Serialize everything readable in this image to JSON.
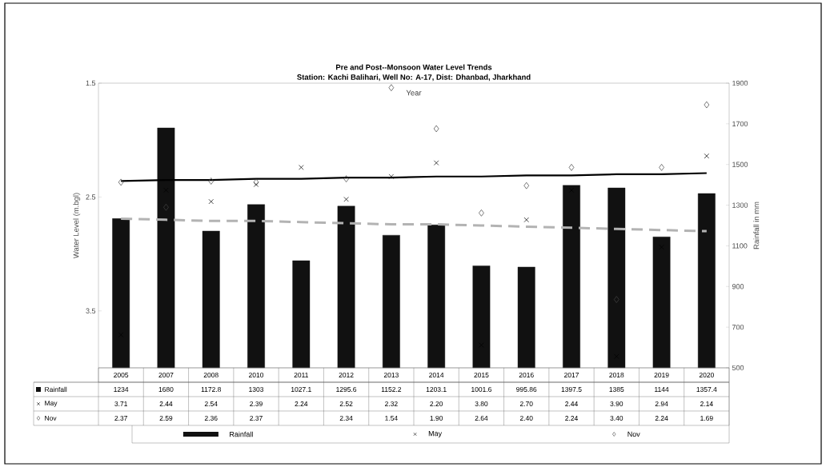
{
  "chart_data": {
    "type": "bar",
    "title": "Pre and Post--Monsoon Water Level Trends",
    "subtitle": "Station: Kachi Balihari, Well No: A-17, Dist: Dhanbad, Jharkhand",
    "xlabel": "Year",
    "ylabel": "Water Level (m.bgl)",
    "y2label": "Rainfall in mm",
    "categories": [
      "2005",
      "2007",
      "2008",
      "2010",
      "2011",
      "2012",
      "2013",
      "2014",
      "2015",
      "2016",
      "2017",
      "2018",
      "2019",
      "2020"
    ],
    "ylim": [
      4,
      1.5
    ],
    "yticks": [
      1.5,
      2.5,
      3.5
    ],
    "y2lim": [
      500,
      1900
    ],
    "y2ticks": [
      500,
      700,
      900,
      1100,
      1300,
      1500,
      1700,
      1900
    ],
    "legend": "bottom",
    "series": [
      {
        "name": "Rainfall",
        "axis": "y2",
        "color": "#111111",
        "values": [
          1234,
          1680,
          1172.8,
          1303,
          1027.1,
          1295.6,
          1152.2,
          1203.1,
          1001.6,
          995.86,
          1397.5,
          1385,
          1144,
          1357.4
        ],
        "value_labels": [
          "1234",
          "1680",
          "1172.8",
          "1303",
          "1027.1",
          "1295.6",
          "1152.2",
          "1203.1",
          "1001.6",
          "995.86",
          "1397.5",
          "1385",
          "1144",
          "1357.4"
        ]
      },
      {
        "name": "May",
        "type": "scatter",
        "marker": "cross",
        "color": "#000000",
        "values": [
          3.71,
          2.44,
          2.54,
          2.39,
          2.24,
          2.52,
          2.32,
          2.2,
          3.8,
          2.7,
          2.44,
          3.9,
          2.94,
          2.14
        ],
        "value_labels": [
          "3.71",
          "2.44",
          "2.54",
          "2.39",
          "2.24",
          "2.52",
          "2.32",
          "2.20",
          "3.80",
          "2.70",
          "2.44",
          "3.90",
          "2.94",
          "2.14"
        ]
      },
      {
        "name": "Nov",
        "type": "scatter",
        "marker": "diamond",
        "color": "#444444",
        "values": [
          2.37,
          2.59,
          2.36,
          2.37,
          null,
          2.34,
          1.54,
          1.9,
          2.64,
          2.4,
          2.24,
          3.4,
          2.24,
          1.69
        ],
        "value_labels": [
          "2.37",
          "2.59",
          "2.36",
          "2.37",
          null,
          "2.34",
          "1.54",
          "1.90",
          "2.64",
          "2.40",
          "2.24",
          "3.40",
          "2.24",
          "1.69"
        ]
      },
      {
        "type": "line",
        "values": [
          2.36,
          2.35,
          2.35,
          2.34,
          2.34,
          2.33,
          2.33,
          2.32,
          2.32,
          2.31,
          2.31,
          2.3,
          2.3,
          2.29
        ],
        "color": "#000000",
        "line_style": "solid"
      },
      {
        "type": "line",
        "values": [
          2.69,
          2.7,
          2.71,
          2.71,
          2.72,
          2.73,
          2.74,
          2.74,
          2.75,
          2.76,
          2.77,
          2.78,
          2.79,
          2.8
        ],
        "color": "#b3b3b3",
        "line_style": "dashed"
      }
    ]
  }
}
